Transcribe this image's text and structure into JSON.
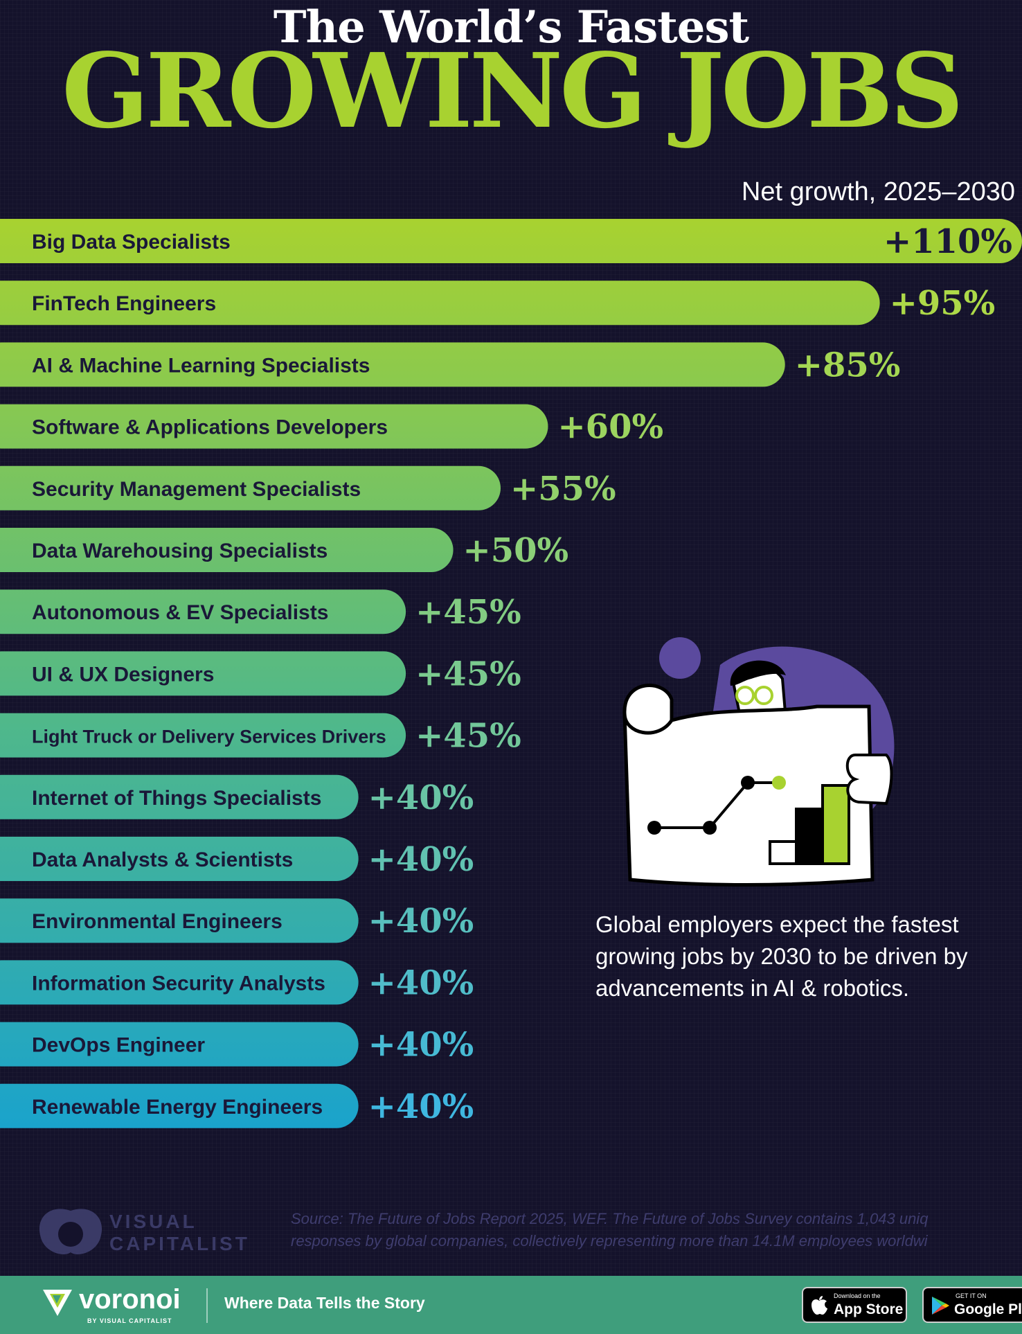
{
  "header": {
    "title_top": "The World’s Fastest",
    "title_main": "GROWING JOBS",
    "subtitle": "Net growth, 2025–2030"
  },
  "chart_data": {
    "type": "bar",
    "orientation": "horizontal",
    "title": "The World’s Fastest GROWING JOBS",
    "subtitle": "Net growth, 2025–2030",
    "categories": [
      "Big Data Specialists",
      "FinTech Engineers",
      "AI & Machine Learning Specialists",
      "Software & Applications Developers",
      "Security Management Specialists",
      "Data Warehousing Specialists",
      "Autonomous & EV Specialists",
      "UI & UX Designers",
      "Light Truck or Delivery Services Drivers",
      "Internet of Things Specialists",
      "Data Analysts & Scientists",
      "Environmental Engineers",
      "Information Security Analysts",
      "DevOps Engineer",
      "Renewable Energy Engineers"
    ],
    "values": [
      110,
      95,
      85,
      60,
      55,
      50,
      45,
      45,
      45,
      40,
      40,
      40,
      40,
      40,
      40
    ],
    "value_labels": [
      "+110%",
      "+95%",
      "+85%",
      "+60%",
      "+55%",
      "+50%",
      "+45%",
      "+45%",
      "+45%",
      "+40%",
      "+40%",
      "+40%",
      "+40%",
      "+40%",
      "+40%"
    ],
    "xlim": [
      0,
      110
    ],
    "colors": {
      "bar_top": "#a8d230",
      "bar_bottom": "#1aa3cc",
      "value_top": "#b5dc3c",
      "value_bottom": "#3fb7e0"
    }
  },
  "annotation": "Global employers expect the fastest growing jobs by 2030 to be driven by advancements in AI & robotics.",
  "source": {
    "line1": "Source: The Future of Jobs Report 2025, WEF. The Future of Jobs Survey contains 1,043 uniq",
    "line2": "responses by global companies, collectively representing more than 14.1M employees worldwi"
  },
  "brand": {
    "vc_line1": "VISUAL",
    "vc_line2": "CAPITALIST",
    "voronoi_name": "voronoi",
    "voronoi_sub": "BY VISUAL CAPITALIST",
    "tagline": "Where Data Tells the Story",
    "appstore_small": "Download on the",
    "appstore_big": "App Store",
    "googleplay_small": "GET IT ON",
    "googleplay_big": "Google Play"
  },
  "icons": [
    "voronoi-logo-icon",
    "visual-capitalist-logo-icon",
    "apple-icon",
    "google-play-icon",
    "person-with-chart-illustration"
  ]
}
